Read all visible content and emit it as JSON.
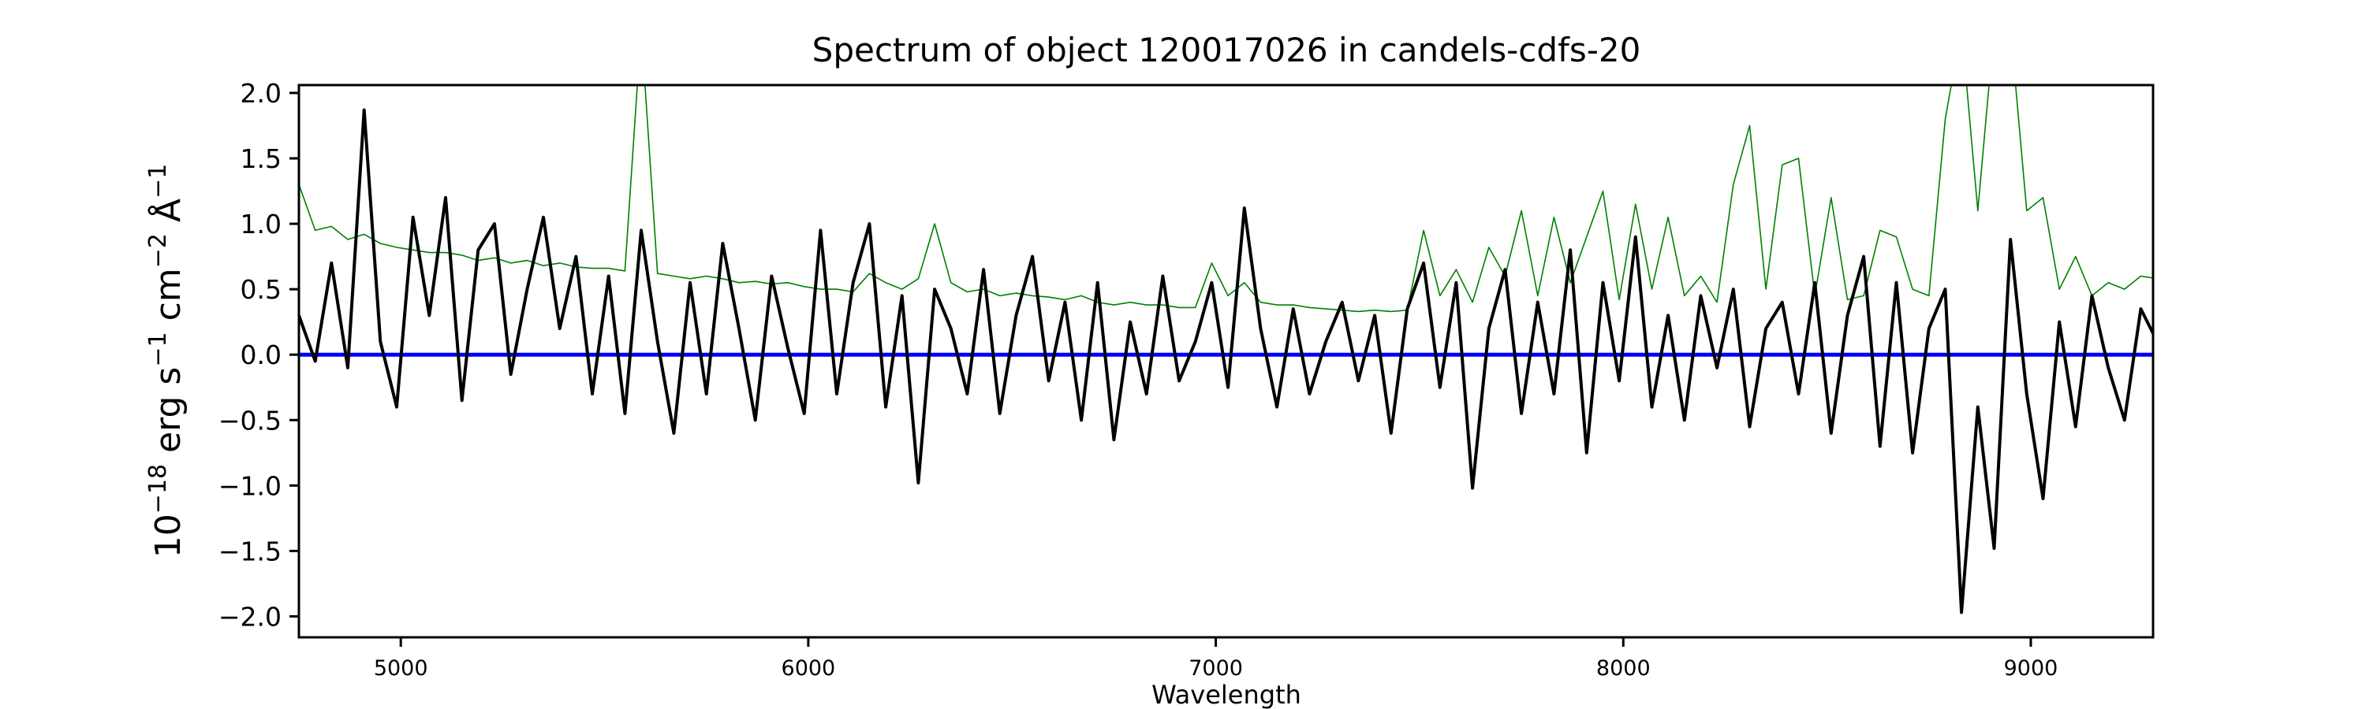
{
  "chart_data": {
    "type": "line",
    "title": "Spectrum of object 120017026 in candels-cdfs-20",
    "xlabel": "Wavelength",
    "ylabel": {
      "base": "10",
      "exp1": "−18",
      "erg": " erg s",
      "exp2": "−1",
      "cm": " cm",
      "exp3": "−2",
      "ang": " Å",
      "exp4": "−1"
    },
    "xlim": [
      4750,
      9300
    ],
    "ylim": [
      -2.16,
      2.06
    ],
    "xticks": [
      5000,
      6000,
      7000,
      8000,
      9000
    ],
    "xtick_labels": [
      "5000",
      "6000",
      "7000",
      "8000",
      "9000"
    ],
    "yticks": [
      2.0,
      1.5,
      1.0,
      0.5,
      0.0,
      -0.5,
      -1.0,
      -1.5,
      -2.0
    ],
    "ytick_labels": [
      "2.0",
      "1.5",
      "1.0",
      "0.5",
      "0.0",
      "−0.5",
      "−1.0",
      "−1.5",
      "−2.0"
    ],
    "grid": false,
    "wavelength_start": 4750,
    "wavelength_step": 40,
    "series": [
      {
        "name": "error",
        "color": "#008000",
        "values": [
          1.3,
          0.95,
          0.98,
          0.88,
          0.92,
          0.85,
          0.82,
          0.8,
          0.78,
          0.78,
          0.76,
          0.72,
          0.74,
          0.7,
          0.72,
          0.68,
          0.7,
          0.67,
          0.66,
          0.66,
          0.64,
          2.5,
          0.62,
          0.6,
          0.58,
          0.6,
          0.58,
          0.55,
          0.56,
          0.54,
          0.55,
          0.52,
          0.5,
          0.5,
          0.48,
          0.62,
          0.55,
          0.5,
          0.58,
          1.0,
          0.55,
          0.48,
          0.5,
          0.45,
          0.47,
          0.45,
          0.44,
          0.42,
          0.45,
          0.4,
          0.38,
          0.4,
          0.38,
          0.38,
          0.36,
          0.36,
          0.7,
          0.45,
          0.55,
          0.4,
          0.38,
          0.38,
          0.36,
          0.35,
          0.34,
          0.33,
          0.34,
          0.33,
          0.34,
          0.95,
          0.45,
          0.65,
          0.4,
          0.82,
          0.6,
          1.1,
          0.45,
          1.05,
          0.55,
          0.9,
          1.25,
          0.42,
          1.15,
          0.5,
          1.05,
          0.45,
          0.6,
          0.4,
          1.3,
          1.75,
          0.5,
          1.45,
          1.5,
          0.45,
          1.2,
          0.42,
          0.45,
          0.95,
          0.9,
          0.5,
          0.45,
          1.8,
          2.5,
          1.1,
          2.5,
          2.5,
          1.1,
          1.2,
          0.5,
          0.75,
          0.45,
          0.55,
          0.5,
          0.6,
          0.58
        ]
      },
      {
        "name": "zero",
        "color": "#0000ff",
        "values": [
          0,
          0
        ]
      },
      {
        "name": "flux",
        "color": "#000000",
        "values": [
          0.3,
          -0.05,
          0.7,
          -0.1,
          1.87,
          0.1,
          -0.4,
          1.05,
          0.3,
          1.2,
          -0.35,
          0.8,
          1.0,
          -0.15,
          0.5,
          1.05,
          0.2,
          0.75,
          -0.3,
          0.6,
          -0.45,
          0.95,
          0.1,
          -0.6,
          0.55,
          -0.3,
          0.85,
          0.2,
          -0.5,
          0.6,
          0.05,
          -0.45,
          0.95,
          -0.3,
          0.55,
          1.0,
          -0.4,
          0.45,
          -0.98,
          0.5,
          0.2,
          -0.3,
          0.65,
          -0.45,
          0.3,
          0.75,
          -0.2,
          0.4,
          -0.5,
          0.55,
          -0.65,
          0.25,
          -0.3,
          0.6,
          -0.2,
          0.1,
          0.55,
          -0.25,
          1.12,
          0.2,
          -0.4,
          0.35,
          -0.3,
          0.1,
          0.4,
          -0.2,
          0.3,
          -0.6,
          0.35,
          0.7,
          -0.25,
          0.55,
          -1.02,
          0.2,
          0.65,
          -0.45,
          0.4,
          -0.3,
          0.8,
          -0.75,
          0.55,
          -0.2,
          0.9,
          -0.4,
          0.3,
          -0.5,
          0.45,
          -0.1,
          0.5,
          -0.55,
          0.2,
          0.4,
          -0.3,
          0.55,
          -0.6,
          0.3,
          0.75,
          -0.7,
          0.55,
          -0.75,
          0.2,
          0.5,
          -1.97,
          -0.4,
          -1.48,
          0.88,
          -0.3,
          -1.1,
          0.25,
          -0.55,
          0.45,
          -0.1,
          -0.5,
          0.35,
          0.1
        ]
      }
    ]
  }
}
